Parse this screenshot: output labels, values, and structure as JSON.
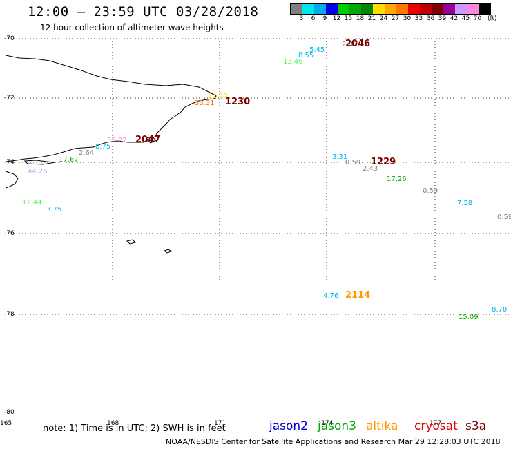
{
  "title": "12:00 – 23:59 UTC 03/28/2018",
  "subtitle": "12 hour collection of altimeter wave heights",
  "legend": {
    "unit": "(ft)",
    "bins": [
      {
        "label": "3",
        "color": "#7f7f7f"
      },
      {
        "label": "6",
        "color": "#00e5ee"
      },
      {
        "label": "9",
        "color": "#00aaee"
      },
      {
        "label": "12",
        "color": "#0000ee"
      },
      {
        "label": "15",
        "color": "#00cc00"
      },
      {
        "label": "18",
        "color": "#00aa00"
      },
      {
        "label": "21",
        "color": "#008800"
      },
      {
        "label": "24",
        "color": "#ffdd00"
      },
      {
        "label": "27",
        "color": "#ffaa00"
      },
      {
        "label": "30",
        "color": "#ff7700"
      },
      {
        "label": "33",
        "color": "#ee0000"
      },
      {
        "label": "36",
        "color": "#bb0000"
      },
      {
        "label": "39",
        "color": "#800000"
      },
      {
        "label": "42",
        "color": "#990099"
      },
      {
        "label": "45",
        "color": "#cc99ff"
      },
      {
        "label": "70",
        "color": "#ff88dd"
      },
      {
        "label": "",
        "color": "#000000"
      }
    ]
  },
  "latitudes": [
    "-70",
    "-72",
    "-74",
    "-76",
    "-78",
    "-80"
  ],
  "longitudes": [
    "165",
    "168",
    "171",
    "-174",
    "177"
  ],
  "observations": [
    {
      "value": "2.87",
      "color": "#808080"
    },
    {
      "value": "5.45",
      "color": "#00bbee"
    },
    {
      "value": "8.55",
      "color": "#00bbee"
    },
    {
      "value": "13.46",
      "color": "#55ee55"
    },
    {
      "value": "22.20",
      "color": "#ffdd00"
    },
    {
      "value": "33.31",
      "color": "#ff6600"
    },
    {
      "value": "35.22",
      "color": "#ff88dd"
    },
    {
      "value": "8.75",
      "color": "#00bbee"
    },
    {
      "value": "2.64",
      "color": "#808080"
    },
    {
      "value": "17.67",
      "color": "#00aa00"
    },
    {
      "value": "44.26",
      "color": "#aaaaee"
    },
    {
      "value": "12.44",
      "color": "#55ee55"
    },
    {
      "value": "3.75",
      "color": "#00bbee"
    },
    {
      "value": "3.31",
      "color": "#00bbee"
    },
    {
      "value": "0.59",
      "color": "#808080"
    },
    {
      "value": "2.43",
      "color": "#808080"
    },
    {
      "value": "17.26",
      "color": "#00aa00"
    },
    {
      "value": "0.59",
      "color": "#808080"
    },
    {
      "value": "7.58",
      "color": "#00aaee"
    },
    {
      "value": "0.59",
      "color": "#808080"
    },
    {
      "value": "4.76",
      "color": "#00bbee"
    },
    {
      "value": "15.09",
      "color": "#00aa00"
    },
    {
      "value": "8.70",
      "color": "#00aaee"
    }
  ],
  "pass_times": [
    {
      "time": "2046",
      "color": "#800000"
    },
    {
      "time": "1230",
      "color": "#800000"
    },
    {
      "time": "2047",
      "color": "#800000"
    },
    {
      "time": "1229",
      "color": "#800000"
    },
    {
      "time": "2114",
      "color": "#ff9900"
    }
  ],
  "note": "note: 1) Time is in UTC; 2) SWH is in feet",
  "missions": [
    {
      "name": "jason2",
      "color": "#0000cc"
    },
    {
      "name": "jason3",
      "color": "#00aa00"
    },
    {
      "name": "altika",
      "color": "#ff9900"
    },
    {
      "name": "cryosat",
      "color": "#dd0000"
    },
    {
      "name": "s3a",
      "color": "#800000"
    }
  ],
  "credit": "NOAA/NESDIS Center for Satellite Applications and Research    Mar 29 12:28:03 UTC 2018"
}
